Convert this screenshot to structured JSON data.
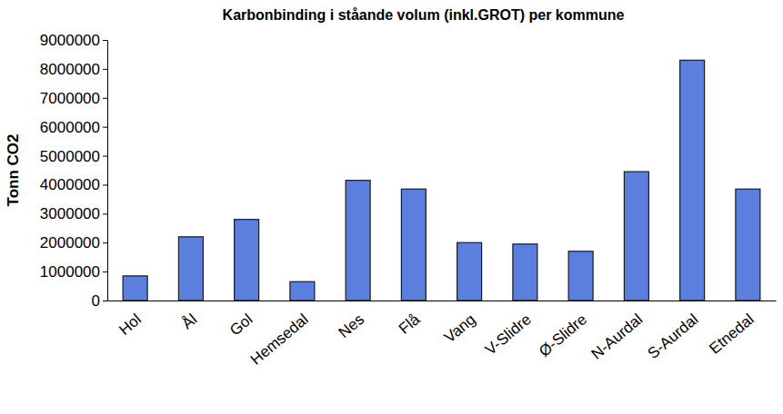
{
  "chart_data": {
    "type": "bar",
    "title": "Karbonbinding i ståande volum (inkl.GROT) per kommune",
    "y_label": "Tonn CO2",
    "categories": [
      "Hol",
      "Ål",
      "Gol",
      "Hemsedal",
      "Nes",
      "Flå",
      "Vang",
      "V-Slidre",
      "Ø-Slidre",
      "N-Aurdal",
      "S-Aurdal",
      "Etnedal"
    ],
    "values": [
      850000,
      2200000,
      2800000,
      650000,
      4150000,
      3850000,
      2000000,
      1950000,
      1700000,
      4450000,
      8300000,
      3850000
    ],
    "color": "#5b7fdc",
    "ylim": [
      0,
      9000000
    ],
    "yticks": [
      0,
      1000000,
      2000000,
      3000000,
      4000000,
      5000000,
      6000000,
      7000000,
      8000000,
      9000000
    ],
    "grid": false
  }
}
